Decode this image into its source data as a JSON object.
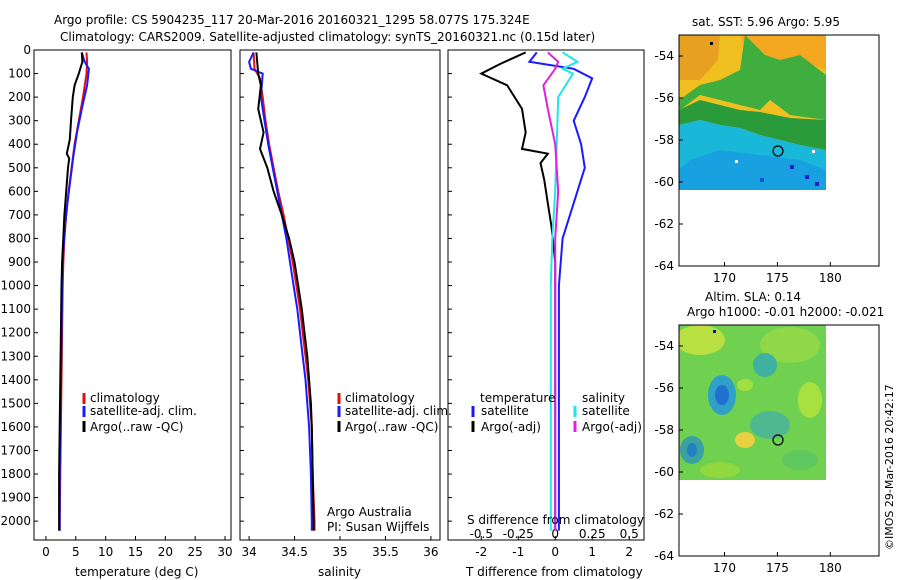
{
  "header": {
    "title_line1": "Argo profile: CS 5904235_117 20-Mar-2016 20160321_1295 58.077S 175.324E",
    "title_line2": "Climatology: CARS2009. Satellite-adjusted climatology: synTS_20160321.nc (0.15d later)"
  },
  "colors": {
    "climatology": "#e01010",
    "satellite": "#1a1aff",
    "argo": "#000000",
    "satellite_salinity": "#22e6e6",
    "argo_salinity": "#e020e0"
  },
  "depth_ticks": [
    "0",
    "100",
    "200",
    "300",
    "400",
    "500",
    "600",
    "700",
    "800",
    "900",
    "1000",
    "1100",
    "1200",
    "1300",
    "1400",
    "1500",
    "1600",
    "1700",
    "1800",
    "1900",
    "2000"
  ],
  "chart_data": [
    {
      "type": "line",
      "name": "temperature-profile",
      "xlabel": "temperature (deg C)",
      "xticks": [
        "0",
        "5",
        "10",
        "15",
        "20",
        "25",
        "30"
      ],
      "xlim": [
        -2,
        31
      ],
      "ylim": [
        2080,
        0
      ],
      "legend": [
        "climatology",
        "satellite-adj. clim.",
        "Argo(..raw -QC)"
      ],
      "legend_position": "lower-right",
      "series": [
        {
          "name": "climatology",
          "points": [
            [
              6.8,
              10
            ],
            [
              6.9,
              50
            ],
            [
              6.8,
              100
            ],
            [
              6.2,
              200
            ],
            [
              5.5,
              300
            ],
            [
              4.8,
              400
            ],
            [
              4.3,
              500
            ],
            [
              3.8,
              600
            ],
            [
              3.4,
              700
            ],
            [
              3.1,
              800
            ],
            [
              2.9,
              900
            ],
            [
              2.8,
              1000
            ],
            [
              2.7,
              1200
            ],
            [
              2.6,
              1400
            ],
            [
              2.5,
              1600
            ],
            [
              2.4,
              1800
            ],
            [
              2.3,
              2000
            ],
            [
              2.3,
              2040
            ]
          ]
        },
        {
          "name": "satellite-adj. clim.",
          "points": [
            [
              6.0,
              10
            ],
            [
              6.5,
              50
            ],
            [
              7.2,
              80
            ],
            [
              6.9,
              150
            ],
            [
              6.0,
              250
            ],
            [
              5.2,
              350
            ],
            [
              4.6,
              450
            ],
            [
              4.1,
              550
            ],
            [
              3.6,
              650
            ],
            [
              3.2,
              750
            ],
            [
              2.9,
              850
            ],
            [
              2.7,
              1000
            ],
            [
              2.6,
              1200
            ],
            [
              2.5,
              1400
            ],
            [
              2.4,
              1600
            ],
            [
              2.3,
              1800
            ],
            [
              2.3,
              2000
            ],
            [
              2.3,
              2040
            ]
          ]
        },
        {
          "name": "Argo(..raw -QC)",
          "points": [
            [
              6.0,
              10
            ],
            [
              6.1,
              50
            ],
            [
              5.5,
              100
            ],
            [
              4.8,
              150
            ],
            [
              4.5,
              200
            ],
            [
              4.2,
              300
            ],
            [
              4.0,
              380
            ],
            [
              3.5,
              440
            ],
            [
              3.9,
              460
            ],
            [
              3.7,
              500
            ],
            [
              3.4,
              600
            ],
            [
              3.1,
              700
            ],
            [
              2.9,
              800
            ],
            [
              2.7,
              900
            ],
            [
              2.6,
              1000
            ],
            [
              2.5,
              1200
            ],
            [
              2.4,
              1400
            ],
            [
              2.3,
              1600
            ],
            [
              2.2,
              1800
            ],
            [
              2.2,
              2000
            ],
            [
              2.2,
              2040
            ]
          ]
        }
      ]
    },
    {
      "type": "line",
      "name": "salinity-profile",
      "xlabel": "salinity",
      "xticks": [
        "34",
        "34.5",
        "35",
        "35.5",
        "36"
      ],
      "xlim": [
        33.9,
        36.1
      ],
      "ylim": [
        2080,
        0
      ],
      "legend": [
        "climatology",
        "satellite-adj. clim.",
        "Argo(..raw -QC)"
      ],
      "legend_position": "right",
      "annotation": [
        "Argo Australia",
        "PI: Susan Wijffels"
      ],
      "series": [
        {
          "name": "climatology",
          "points": [
            [
              34.05,
              10
            ],
            [
              34.06,
              80
            ],
            [
              34.12,
              120
            ],
            [
              34.15,
              200
            ],
            [
              34.18,
              300
            ],
            [
              34.22,
              400
            ],
            [
              34.27,
              500
            ],
            [
              34.32,
              600
            ],
            [
              34.38,
              700
            ],
            [
              34.43,
              800
            ],
            [
              34.48,
              900
            ],
            [
              34.52,
              1000
            ],
            [
              34.56,
              1100
            ],
            [
              34.59,
              1200
            ],
            [
              34.62,
              1300
            ],
            [
              34.65,
              1400
            ],
            [
              34.67,
              1500
            ],
            [
              34.69,
              1600
            ],
            [
              34.7,
              1800
            ],
            [
              34.72,
              2000
            ],
            [
              34.72,
              2040
            ]
          ]
        },
        {
          "name": "satellite-adj. clim.",
          "points": [
            [
              34.05,
              10
            ],
            [
              34.0,
              50
            ],
            [
              34.02,
              80
            ],
            [
              34.15,
              100
            ],
            [
              34.13,
              200
            ],
            [
              34.17,
              300
            ],
            [
              34.21,
              400
            ],
            [
              34.26,
              500
            ],
            [
              34.31,
              600
            ],
            [
              34.36,
              700
            ],
            [
              34.41,
              800
            ],
            [
              34.45,
              900
            ],
            [
              34.49,
              1000
            ],
            [
              34.53,
              1100
            ],
            [
              34.56,
              1200
            ],
            [
              34.59,
              1300
            ],
            [
              34.62,
              1400
            ],
            [
              34.64,
              1500
            ],
            [
              34.66,
              1600
            ],
            [
              34.68,
              1800
            ],
            [
              34.69,
              2000
            ],
            [
              34.69,
              2040
            ]
          ]
        },
        {
          "name": "Argo(..raw -QC)",
          "points": [
            [
              34.08,
              10
            ],
            [
              34.1,
              100
            ],
            [
              34.13,
              150
            ],
            [
              34.1,
              250
            ],
            [
              34.16,
              350
            ],
            [
              34.12,
              420
            ],
            [
              34.2,
              500
            ],
            [
              34.27,
              600
            ],
            [
              34.36,
              700
            ],
            [
              34.44,
              800
            ],
            [
              34.5,
              900
            ],
            [
              34.54,
              1000
            ],
            [
              34.58,
              1100
            ],
            [
              34.61,
              1200
            ],
            [
              34.64,
              1300
            ],
            [
              34.66,
              1400
            ],
            [
              34.68,
              1500
            ],
            [
              34.69,
              1600
            ],
            [
              34.7,
              1800
            ],
            [
              34.71,
              2000
            ],
            [
              34.71,
              2040
            ]
          ]
        }
      ]
    },
    {
      "type": "line",
      "name": "difference-profile",
      "xlabel": "T difference from climatology",
      "xlabel_top": "S difference from climatology",
      "xticks_T": [
        "-2",
        "-1",
        "0",
        "1",
        "2"
      ],
      "xticks_S": [
        "-0.5",
        "-0.25",
        "0",
        "0.25",
        "0.5"
      ],
      "xlim": [
        -2.9,
        2.4
      ],
      "ylim": [
        2080,
        0
      ],
      "legend_temperature": [
        "temperature",
        "satellite",
        "Argo(-adj)"
      ],
      "legend_salinity": [
        "salinity",
        "satellite",
        "Argo(-adj)"
      ],
      "series": [
        {
          "name": "temperature satellite",
          "axis": "T",
          "points": [
            [
              -0.5,
              10
            ],
            [
              -0.7,
              50
            ],
            [
              0.5,
              80
            ],
            [
              1.0,
              120
            ],
            [
              0.8,
              200
            ],
            [
              0.5,
              300
            ],
            [
              0.7,
              400
            ],
            [
              0.8,
              500
            ],
            [
              0.6,
              600
            ],
            [
              0.4,
              700
            ],
            [
              0.2,
              800
            ],
            [
              0.1,
              1000
            ],
            [
              0.1,
              1500
            ],
            [
              0.1,
              2040
            ]
          ]
        },
        {
          "name": "temperature Argo(-adj)",
          "axis": "T",
          "points": [
            [
              -0.8,
              10
            ],
            [
              -1.5,
              60
            ],
            [
              -2.0,
              100
            ],
            [
              -1.3,
              150
            ],
            [
              -0.9,
              250
            ],
            [
              -0.8,
              350
            ],
            [
              -0.9,
              420
            ],
            [
              -0.2,
              440
            ],
            [
              -0.4,
              480
            ],
            [
              -0.3,
              550
            ],
            [
              -0.2,
              650
            ],
            [
              -0.1,
              750
            ],
            [
              0.0,
              900
            ],
            [
              0.0,
              1200
            ],
            [
              0.0,
              1600
            ],
            [
              0.0,
              2040
            ]
          ]
        },
        {
          "name": "salinity satellite",
          "axis": "S",
          "points": [
            [
              0.05,
              10
            ],
            [
              0.15,
              50
            ],
            [
              0.05,
              80
            ],
            [
              0.12,
              100
            ],
            [
              0.02,
              200
            ],
            [
              0.01,
              400
            ],
            [
              0.0,
              600
            ],
            [
              -0.02,
              800
            ],
            [
              -0.03,
              1000
            ],
            [
              -0.03,
              1500
            ],
            [
              -0.03,
              2040
            ]
          ]
        },
        {
          "name": "salinity Argo(-adj)",
          "axis": "S",
          "points": [
            [
              -0.05,
              10
            ],
            [
              0.02,
              50
            ],
            [
              0.0,
              80
            ],
            [
              -0.08,
              150
            ],
            [
              -0.05,
              250
            ],
            [
              0.0,
              400
            ],
            [
              0.02,
              600
            ],
            [
              0.0,
              800
            ],
            [
              0.0,
              1200
            ],
            [
              0.0,
              2040
            ]
          ]
        }
      ]
    }
  ],
  "maps": {
    "sst": {
      "title": "sat. SST: 5.96 Argo: 5.95",
      "yticks": [
        "-54",
        "-56",
        "-58",
        "-60",
        "-62",
        "-64"
      ],
      "xticks": [
        "170",
        "175",
        "180"
      ]
    },
    "sla": {
      "title_line1": "Altim. SLA: 0.14",
      "title_line2": "Argo h1000: -0.01 h2000: -0.021",
      "yticks": [
        "-54",
        "-56",
        "-58",
        "-60",
        "-62",
        "-64"
      ],
      "xticks": [
        "170",
        "175",
        "180"
      ]
    }
  },
  "credit": "©IMOS 29-Mar-2016 20:42:17"
}
